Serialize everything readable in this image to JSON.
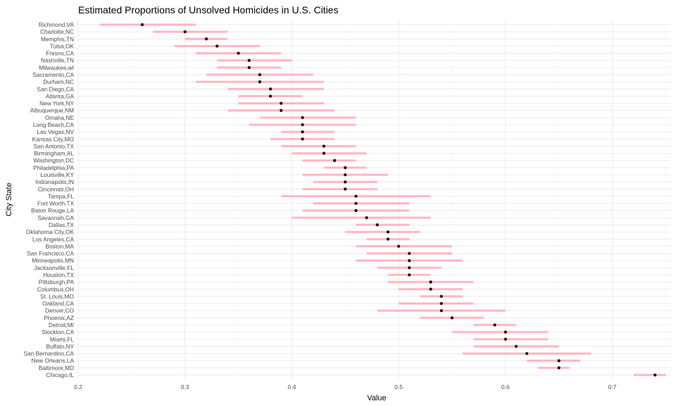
{
  "chart_data": {
    "type": "scatter",
    "title": "Estimated Proportions of Unsolved Homicides in U.S. Cities",
    "xlabel": "Value",
    "ylabel": "City State",
    "xlim": [
      0.2,
      0.755
    ],
    "x_ticks": [
      "0.2",
      "0.3",
      "0.4",
      "0.5",
      "0.6",
      "0.7"
    ],
    "x_tick_values": [
      0.2,
      0.3,
      0.4,
      0.5,
      0.6,
      0.7
    ],
    "grid": true,
    "colors": {
      "interval": "#ffb6c1",
      "point": "#000000",
      "grid": "#ebebeb"
    },
    "cities": [
      "Richmond,VA",
      "Charlotte,NC",
      "Memphis,TN",
      "Tulsa,OK",
      "Fresno,CA",
      "Nashville,TN",
      "Milwaukee,wI",
      "Sacramento,CA",
      "Durham,NC",
      "San Diego,CA",
      "Atlanta,GA",
      "New York,NY",
      "Albuquerque,NM",
      "Omaha,NE",
      "Long Beach,CA",
      "Las Vegas,NV",
      "Kansas City,MO",
      "San Antonio,TX",
      "Birmingham,AL",
      "Washington,DC",
      "Philadelphia,PA",
      "Louisville,KY",
      "Indianapolis,IN",
      "Cincinnati,OH",
      "Tampa,FL",
      "Fort Worth,TX",
      "Baton Rouge,LA",
      "Savannah,GA",
      "Dallas,TX",
      "Oklahoma City,OK",
      "Los Angeles,CA",
      "Boston,MA",
      "San Francisco,CA",
      "Minneapolis,MN",
      "Jacksonville,FL",
      "Houston,TX",
      "Pittsburgh,PA",
      "Columbus,OH",
      "St. Louis,MO",
      "Oakland,CA",
      "Denver,CO",
      "Phoenix,AZ",
      "Detroit,MI",
      "Stockton,CA",
      "Miami,FL",
      "Buffalo,NY",
      "San Bernardino,CA",
      "New Orleans,LA",
      "Baltimore,MD",
      "Chicago,IL"
    ],
    "estimate": [
      0.26,
      0.3,
      0.32,
      0.33,
      0.35,
      0.36,
      0.36,
      0.37,
      0.37,
      0.38,
      0.38,
      0.39,
      0.39,
      0.41,
      0.41,
      0.41,
      0.41,
      0.43,
      0.43,
      0.44,
      0.45,
      0.45,
      0.45,
      0.45,
      0.46,
      0.46,
      0.46,
      0.47,
      0.48,
      0.49,
      0.49,
      0.5,
      0.51,
      0.51,
      0.51,
      0.51,
      0.53,
      0.53,
      0.54,
      0.54,
      0.54,
      0.55,
      0.59,
      0.6,
      0.6,
      0.61,
      0.62,
      0.65,
      0.65,
      0.74
    ],
    "conf_low": [
      0.22,
      0.27,
      0.3,
      0.29,
      0.31,
      0.33,
      0.33,
      0.32,
      0.31,
      0.34,
      0.35,
      0.35,
      0.34,
      0.37,
      0.36,
      0.39,
      0.38,
      0.39,
      0.4,
      0.41,
      0.43,
      0.41,
      0.42,
      0.41,
      0.39,
      0.42,
      0.41,
      0.4,
      0.46,
      0.45,
      0.47,
      0.46,
      0.47,
      0.46,
      0.48,
      0.49,
      0.49,
      0.5,
      0.52,
      0.5,
      0.48,
      0.52,
      0.57,
      0.55,
      0.57,
      0.57,
      0.56,
      0.62,
      0.63,
      0.72
    ],
    "conf_high": [
      0.31,
      0.34,
      0.34,
      0.37,
      0.39,
      0.4,
      0.39,
      0.42,
      0.43,
      0.43,
      0.41,
      0.43,
      0.44,
      0.46,
      0.46,
      0.44,
      0.44,
      0.46,
      0.47,
      0.46,
      0.47,
      0.49,
      0.48,
      0.48,
      0.53,
      0.51,
      0.51,
      0.53,
      0.51,
      0.52,
      0.51,
      0.55,
      0.55,
      0.56,
      0.54,
      0.53,
      0.57,
      0.56,
      0.56,
      0.57,
      0.6,
      0.58,
      0.61,
      0.64,
      0.64,
      0.65,
      0.68,
      0.67,
      0.66,
      0.75
    ]
  }
}
